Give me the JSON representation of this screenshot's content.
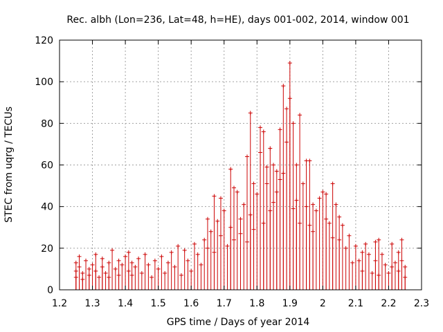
{
  "chart_data": {
    "type": "scatter",
    "title": "Rec. albh (Lon=236, Lat=48, h=HE), days 001-002, 2014, window 001",
    "xlabel": "GPS time / Days of year 2014",
    "ylabel": "STEC from uqrg / TECUs",
    "xlim": [
      1.2,
      2.3
    ],
    "ylim": [
      0,
      120
    ],
    "x_ticks": [
      "1.2",
      "1.3",
      "1.4",
      "1.5",
      "1.6",
      "1.7",
      "1.8",
      "1.9",
      "2",
      "2.1",
      "2.2",
      "2.3"
    ],
    "y_ticks": [
      "0",
      "20",
      "40",
      "60",
      "80",
      "100",
      "120"
    ],
    "grid": true,
    "legend": "none",
    "series_color": "#cc0000",
    "points": [
      [
        1.25,
        13
      ],
      [
        1.25,
        9
      ],
      [
        1.25,
        6
      ],
      [
        1.26,
        16
      ],
      [
        1.26,
        11
      ],
      [
        1.27,
        8
      ],
      [
        1.27,
        5
      ],
      [
        1.28,
        14
      ],
      [
        1.29,
        10
      ],
      [
        1.29,
        7
      ],
      [
        1.3,
        12
      ],
      [
        1.31,
        17
      ],
      [
        1.31,
        9
      ],
      [
        1.32,
        6
      ],
      [
        1.33,
        15
      ],
      [
        1.33,
        11
      ],
      [
        1.34,
        8
      ],
      [
        1.35,
        13
      ],
      [
        1.35,
        6
      ],
      [
        1.36,
        19
      ],
      [
        1.37,
        10
      ],
      [
        1.38,
        14
      ],
      [
        1.38,
        7
      ],
      [
        1.39,
        12
      ],
      [
        1.4,
        16
      ],
      [
        1.41,
        9
      ],
      [
        1.41,
        18
      ],
      [
        1.42,
        13
      ],
      [
        1.42,
        7
      ],
      [
        1.43,
        11
      ],
      [
        1.44,
        15
      ],
      [
        1.45,
        8
      ],
      [
        1.46,
        17
      ],
      [
        1.47,
        12
      ],
      [
        1.48,
        6
      ],
      [
        1.49,
        14
      ],
      [
        1.5,
        10
      ],
      [
        1.51,
        16
      ],
      [
        1.52,
        8
      ],
      [
        1.53,
        13
      ],
      [
        1.54,
        18
      ],
      [
        1.55,
        11
      ],
      [
        1.56,
        21
      ],
      [
        1.57,
        7
      ],
      [
        1.58,
        19
      ],
      [
        1.59,
        14
      ],
      [
        1.6,
        9
      ],
      [
        1.61,
        22
      ],
      [
        1.62,
        17
      ],
      [
        1.63,
        12
      ],
      [
        1.64,
        24
      ],
      [
        1.65,
        34
      ],
      [
        1.65,
        20
      ],
      [
        1.66,
        28
      ],
      [
        1.67,
        45
      ],
      [
        1.67,
        18
      ],
      [
        1.68,
        33
      ],
      [
        1.69,
        44
      ],
      [
        1.69,
        26
      ],
      [
        1.7,
        38
      ],
      [
        1.71,
        21
      ],
      [
        1.72,
        58
      ],
      [
        1.72,
        30
      ],
      [
        1.73,
        49
      ],
      [
        1.73,
        24
      ],
      [
        1.74,
        47
      ],
      [
        1.75,
        34
      ],
      [
        1.75,
        27
      ],
      [
        1.76,
        41
      ],
      [
        1.77,
        64
      ],
      [
        1.77,
        23
      ],
      [
        1.78,
        85
      ],
      [
        1.78,
        36
      ],
      [
        1.79,
        51
      ],
      [
        1.79,
        29
      ],
      [
        1.8,
        46
      ],
      [
        1.81,
        78
      ],
      [
        1.81,
        66
      ],
      [
        1.82,
        76
      ],
      [
        1.82,
        32
      ],
      [
        1.83,
        51
      ],
      [
        1.83,
        59
      ],
      [
        1.84,
        68
      ],
      [
        1.84,
        38
      ],
      [
        1.85,
        60
      ],
      [
        1.85,
        42
      ],
      [
        1.86,
        57
      ],
      [
        1.86,
        47
      ],
      [
        1.87,
        77
      ],
      [
        1.87,
        53
      ],
      [
        1.88,
        98
      ],
      [
        1.88,
        56
      ],
      [
        1.89,
        87
      ],
      [
        1.89,
        71
      ],
      [
        1.9,
        109
      ],
      [
        1.9,
        92
      ],
      [
        1.91,
        80
      ],
      [
        1.91,
        39
      ],
      [
        1.92,
        60
      ],
      [
        1.92,
        43
      ],
      [
        1.93,
        84
      ],
      [
        1.93,
        32
      ],
      [
        1.94,
        51
      ],
      [
        1.95,
        62
      ],
      [
        1.95,
        40
      ],
      [
        1.96,
        62
      ],
      [
        1.96,
        31
      ],
      [
        1.97,
        41
      ],
      [
        1.97,
        28
      ],
      [
        1.98,
        38
      ],
      [
        1.99,
        44
      ],
      [
        2.0,
        47
      ],
      [
        2.01,
        46
      ],
      [
        2.01,
        34
      ],
      [
        2.02,
        32
      ],
      [
        2.03,
        51
      ],
      [
        2.03,
        25
      ],
      [
        2.04,
        41
      ],
      [
        2.05,
        35
      ],
      [
        2.05,
        24
      ],
      [
        2.06,
        31
      ],
      [
        2.07,
        20
      ],
      [
        2.08,
        26
      ],
      [
        2.09,
        13
      ],
      [
        2.1,
        21
      ],
      [
        2.11,
        14
      ],
      [
        2.12,
        18
      ],
      [
        2.12,
        9
      ],
      [
        2.13,
        22
      ],
      [
        2.14,
        17
      ],
      [
        2.15,
        8
      ],
      [
        2.16,
        23
      ],
      [
        2.16,
        14
      ],
      [
        2.17,
        24
      ],
      [
        2.17,
        7
      ],
      [
        2.18,
        17
      ],
      [
        2.19,
        12
      ],
      [
        2.2,
        8
      ],
      [
        2.21,
        22
      ],
      [
        2.21,
        11
      ],
      [
        2.22,
        13
      ],
      [
        2.23,
        18
      ],
      [
        2.23,
        9
      ],
      [
        2.24,
        24
      ],
      [
        2.24,
        14
      ],
      [
        2.25,
        6
      ],
      [
        2.25,
        11
      ]
    ]
  }
}
